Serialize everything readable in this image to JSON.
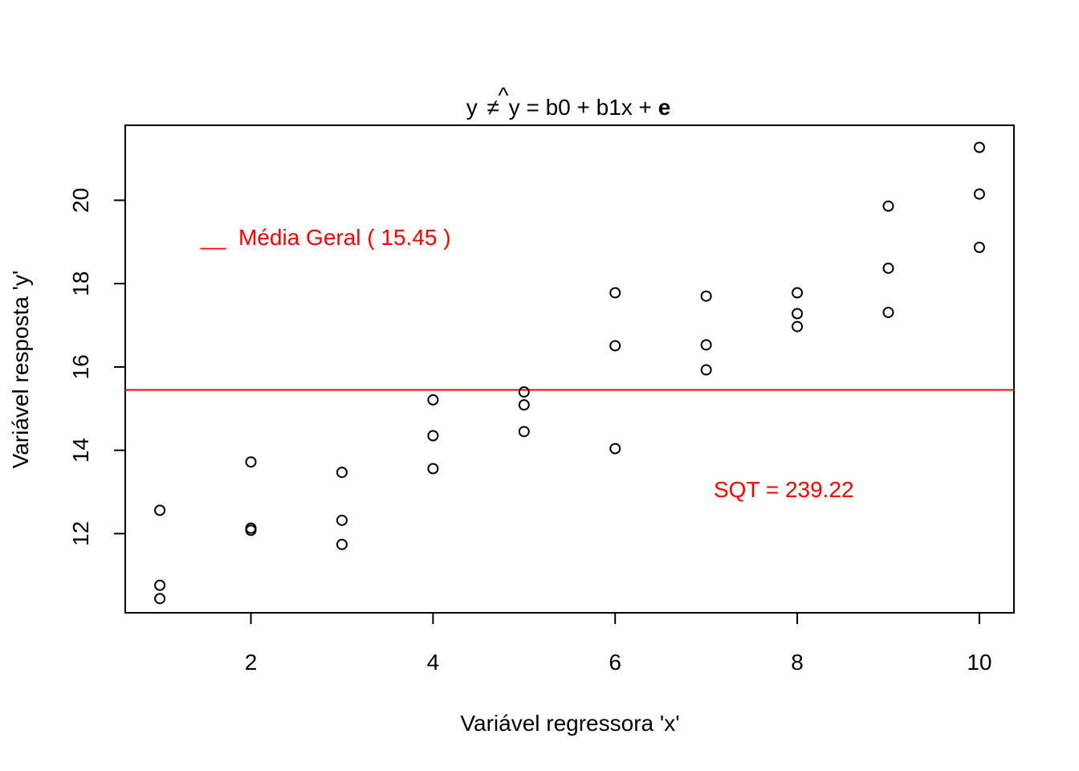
{
  "chart_data": {
    "type": "scatter",
    "title": {
      "pre": "y",
      "neq": "≠",
      "yhat": "y",
      "hat": "^",
      "eq": " = b0 + b1x + ",
      "err": "e"
    },
    "xlabel": "Variável regressora 'x'",
    "ylabel": "Variável resposta 'y'",
    "xlim": [
      0.62,
      10.38
    ],
    "ylim": [
      10.1,
      21.8
    ],
    "xticks": [
      2,
      4,
      6,
      8,
      10
    ],
    "xtick_labels": [
      "2",
      "4",
      "6",
      "8",
      "10"
    ],
    "yticks": [
      12,
      14,
      16,
      18,
      20
    ],
    "ytick_labels": [
      "12",
      "14",
      "16",
      "18",
      "20"
    ],
    "grid": false,
    "points": [
      {
        "x": 1,
        "y": 12.56
      },
      {
        "x": 1,
        "y": 10.76
      },
      {
        "x": 1,
        "y": 10.44
      },
      {
        "x": 2,
        "y": 13.72
      },
      {
        "x": 2,
        "y": 12.13
      },
      {
        "x": 2,
        "y": 12.08
      },
      {
        "x": 3,
        "y": 13.47
      },
      {
        "x": 3,
        "y": 12.32
      },
      {
        "x": 3,
        "y": 11.74
      },
      {
        "x": 4,
        "y": 15.21
      },
      {
        "x": 4,
        "y": 14.35
      },
      {
        "x": 4,
        "y": 13.56
      },
      {
        "x": 5,
        "y": 15.4
      },
      {
        "x": 5,
        "y": 15.09
      },
      {
        "x": 5,
        "y": 14.45
      },
      {
        "x": 6,
        "y": 17.78
      },
      {
        "x": 6,
        "y": 16.51
      },
      {
        "x": 6,
        "y": 14.04
      },
      {
        "x": 7,
        "y": 17.7
      },
      {
        "x": 7,
        "y": 16.53
      },
      {
        "x": 7,
        "y": 15.93
      },
      {
        "x": 8,
        "y": 17.78
      },
      {
        "x": 8,
        "y": 17.28
      },
      {
        "x": 8,
        "y": 16.97
      },
      {
        "x": 9,
        "y": 19.86
      },
      {
        "x": 9,
        "y": 18.37
      },
      {
        "x": 9,
        "y": 17.31
      },
      {
        "x": 10,
        "y": 21.27
      },
      {
        "x": 10,
        "y": 20.15
      },
      {
        "x": 10,
        "y": 18.87
      }
    ],
    "mean_line": {
      "y": 15.45,
      "color": "#ff0000"
    },
    "legend": {
      "symbol": "__",
      "text": "Média Geral ( 15.45 )",
      "placement": "top-left",
      "color": "#ff0000"
    },
    "annotation": {
      "text": "SQT =  239.22",
      "placement": "bottom-right",
      "color": "#ff0000"
    }
  }
}
